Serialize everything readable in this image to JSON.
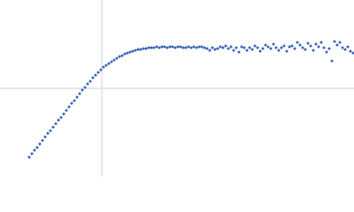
{
  "chart_data": {
    "type": "scatter",
    "color": "#3b65b5",
    "ref_color": "#c9d2dc",
    "xlim": [
      0,
      400
    ],
    "ylim": [
      0,
      200
    ],
    "ref_x": 115,
    "ref_y": 100,
    "x": [
      33,
      36,
      39,
      42,
      45,
      48,
      51,
      54,
      57,
      60,
      63,
      66,
      69,
      72,
      75,
      78,
      81,
      84,
      87,
      90,
      93,
      96,
      99,
      102,
      105,
      108,
      111,
      114,
      117,
      120,
      123,
      126,
      129,
      132,
      135,
      138,
      141,
      144,
      147,
      150,
      153,
      156,
      159,
      162,
      165,
      168,
      171,
      174,
      177,
      180,
      183,
      186,
      189,
      192,
      195,
      198,
      201,
      204,
      207,
      210,
      213,
      216,
      219,
      222,
      225,
      228,
      231,
      234,
      237,
      240,
      243,
      246,
      249,
      252,
      255,
      258,
      261,
      264,
      267,
      270,
      273,
      276,
      279,
      282,
      285,
      288,
      291,
      294,
      297,
      300,
      303,
      306,
      309,
      312,
      315,
      318,
      321,
      324,
      327,
      330,
      333,
      336,
      339,
      342,
      345,
      348,
      351,
      354,
      357,
      360,
      363,
      366,
      369,
      372,
      375,
      378,
      381,
      384,
      387,
      390,
      393,
      396,
      399
    ],
    "y": [
      22,
      26,
      30,
      33,
      37,
      41,
      45,
      49,
      52,
      56,
      60,
      64,
      67,
      71,
      75,
      79,
      83,
      86,
      90,
      94,
      98,
      101,
      105,
      108,
      112,
      115,
      118,
      121,
      124,
      126,
      128,
      130,
      132,
      134,
      136,
      137,
      139,
      140,
      141,
      142,
      143,
      144,
      144,
      145,
      145,
      146,
      146,
      146,
      147,
      146,
      147,
      147,
      146,
      147,
      147,
      146,
      147,
      147,
      146,
      146,
      147,
      146,
      147,
      146,
      147,
      147,
      146,
      145,
      143,
      146,
      144,
      145,
      147,
      146,
      148,
      145,
      147,
      143,
      146,
      141,
      147,
      146,
      143,
      146,
      144,
      148,
      146,
      142,
      145,
      149,
      147,
      145,
      150,
      146,
      143,
      146,
      148,
      142,
      147,
      148,
      145,
      152,
      149,
      146,
      144,
      151,
      148,
      143,
      150,
      147,
      152,
      146,
      141,
      145,
      131,
      153,
      149,
      152,
      146,
      144,
      147,
      142,
      140
    ]
  }
}
